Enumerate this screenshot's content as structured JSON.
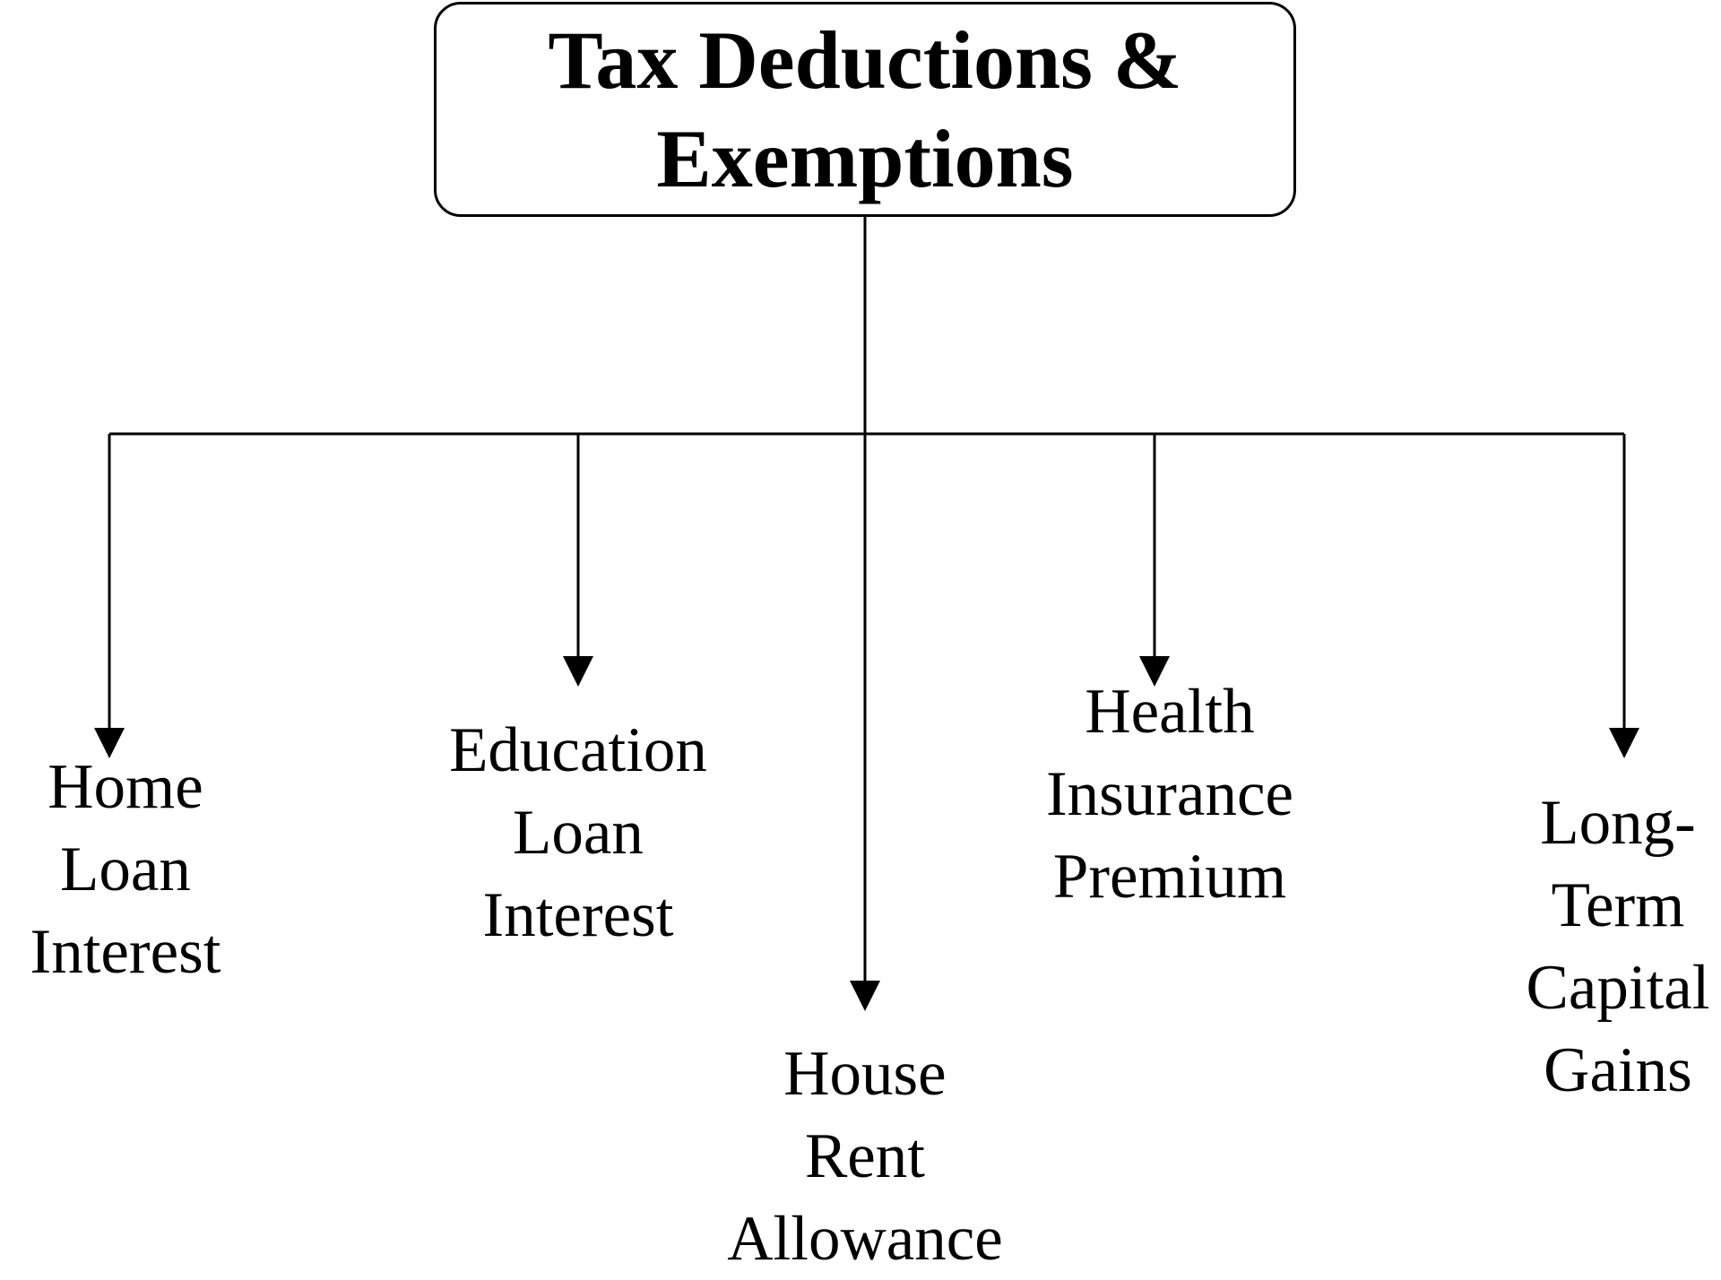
{
  "diagram": {
    "root": {
      "title_line1": "Tax Deductions &",
      "title_line2": "Exemptions"
    },
    "children": [
      {
        "id": "home-loan-interest",
        "lines": [
          "Home",
          "Loan",
          "Interest"
        ]
      },
      {
        "id": "education-loan-interest",
        "lines": [
          "Education",
          "Loan",
          "Interest"
        ]
      },
      {
        "id": "house-rent-allowance",
        "lines": [
          "House",
          "Rent",
          "Allowance"
        ]
      },
      {
        "id": "health-insurance-premium",
        "lines": [
          "Health",
          "Insurance",
          "Premium"
        ]
      },
      {
        "id": "long-term-capital-gains",
        "lines": [
          "Long-",
          "Term",
          "Capital",
          "Gains"
        ]
      }
    ],
    "colors": {
      "line": "#000000",
      "background": "#ffffff"
    }
  }
}
